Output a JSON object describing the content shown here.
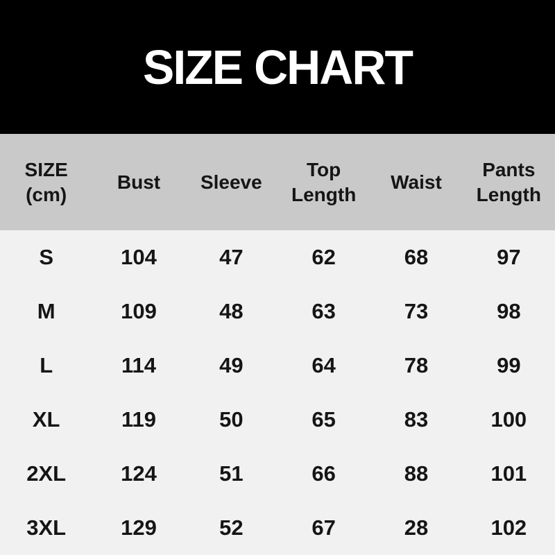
{
  "banner": {
    "title": "SIZE CHART"
  },
  "table": {
    "columns": [
      "SIZE\n(cm)",
      "Bust",
      "Sleeve",
      "Top\nLength",
      "Waist",
      "Pants\nLength"
    ],
    "rows": [
      {
        "size": "S",
        "bust": "104",
        "sleeve": "47",
        "top_length": "62",
        "waist": "68",
        "pants_length": "97"
      },
      {
        "size": "M",
        "bust": "109",
        "sleeve": "48",
        "top_length": "63",
        "waist": "73",
        "pants_length": "98"
      },
      {
        "size": "L",
        "bust": "114",
        "sleeve": "49",
        "top_length": "64",
        "waist": "78",
        "pants_length": "99"
      },
      {
        "size": "XL",
        "bust": "119",
        "sleeve": "50",
        "top_length": "65",
        "waist": "83",
        "pants_length": "100"
      },
      {
        "size": "2XL",
        "bust": "124",
        "sleeve": "51",
        "top_length": "66",
        "waist": "88",
        "pants_length": "101"
      },
      {
        "size": "3XL",
        "bust": "129",
        "sleeve": "52",
        "top_length": "67",
        "waist": "28",
        "pants_length": "102"
      }
    ]
  },
  "chart_data": {
    "type": "table",
    "title": "SIZE CHART",
    "unit": "cm",
    "columns": [
      "SIZE (cm)",
      "Bust",
      "Sleeve",
      "Top Length",
      "Waist",
      "Pants Length"
    ],
    "rows": [
      [
        "S",
        104,
        47,
        62,
        68,
        97
      ],
      [
        "M",
        109,
        48,
        63,
        73,
        98
      ],
      [
        "L",
        114,
        49,
        64,
        78,
        99
      ],
      [
        "XL",
        119,
        50,
        65,
        83,
        100
      ],
      [
        "2XL",
        124,
        51,
        66,
        88,
        101
      ],
      [
        "3XL",
        129,
        52,
        67,
        28,
        102
      ]
    ],
    "layout": {
      "header_background": "#c9c9c9",
      "body_background": "#f1f1f1",
      "title_banner_background": "#000000",
      "title_text_color": "#ffffff",
      "grid": "off"
    }
  },
  "colors": {
    "banner_bg": "#000000",
    "title_text": "#ffffff",
    "header_bg": "#c9c9c9",
    "body_bg": "#f1f1f1",
    "table_text": "#151515"
  }
}
